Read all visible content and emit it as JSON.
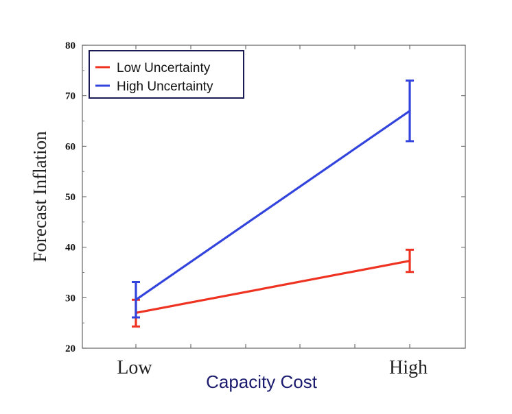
{
  "chart_data": {
    "type": "line",
    "categories": [
      "Low",
      "High"
    ],
    "xlabel": "Capacity Cost",
    "ylabel": "Forecast Inflation",
    "ylim": [
      20,
      80
    ],
    "yticks": [
      20,
      30,
      40,
      50,
      60,
      70,
      80
    ],
    "grid": false,
    "legend_position": "top-left",
    "series": [
      {
        "name": "Low Uncertainty",
        "color": "#ee3322",
        "values": [
          27,
          37.3
        ],
        "error_low": [
          24.3,
          35.1
        ],
        "error_high": [
          29.6,
          39.5
        ]
      },
      {
        "name": "High Uncertainty",
        "color": "#3344dd",
        "values": [
          29.6,
          67
        ],
        "error_low": [
          26.1,
          61
        ],
        "error_high": [
          33.1,
          73
        ]
      }
    ]
  }
}
